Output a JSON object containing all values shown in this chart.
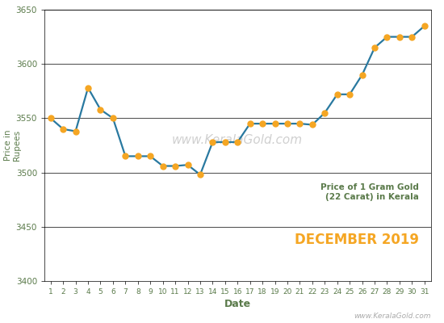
{
  "dates": [
    1,
    2,
    3,
    4,
    5,
    6,
    7,
    8,
    9,
    10,
    11,
    12,
    13,
    14,
    15,
    16,
    17,
    18,
    19,
    20,
    21,
    22,
    23,
    24,
    25,
    26,
    27,
    28,
    29,
    30,
    31
  ],
  "prices": [
    3550,
    3540,
    3538,
    3578,
    3558,
    3550,
    3515,
    3515,
    3515,
    3506,
    3506,
    3507,
    3498,
    3528,
    3528,
    3528,
    3545,
    3545,
    3545,
    3545,
    3545,
    3544,
    3555,
    3572,
    3572,
    3590,
    3615,
    3625,
    3625,
    3625,
    3635
  ],
  "line_color": "#2979a0",
  "marker_color": "#f5a623",
  "marker_size": 5,
  "line_width": 1.6,
  "ylim": [
    3400,
    3650
  ],
  "yticks": [
    3400,
    3450,
    3500,
    3550,
    3600,
    3650
  ],
  "xlabel": "Date",
  "ylabel": "Price in\nRupees",
  "title_line12": "Price of 1 Gram Gold\n(22 Carat) in Kerala",
  "title_line3": "DECEMBER 2019",
  "title_color12": "#5a7a4a",
  "title_color3": "#f5a623",
  "watermark": "www.KeralaGold.com",
  "watermark_color": "#d0d0d0",
  "bg_color": "#ffffff",
  "grid_color": "#000000",
  "axis_label_color": "#5a7a4a",
  "tick_label_color": "#5a7a4a",
  "website_text": "www.KeralaGold.com",
  "website_color": "#aaaaaa"
}
